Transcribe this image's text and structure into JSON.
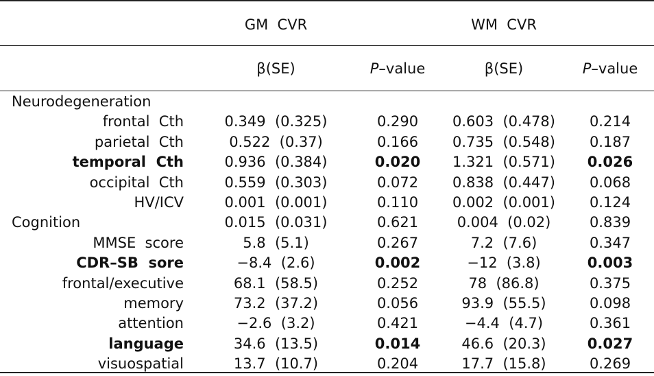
{
  "header": {
    "gm_group": "GM  CVR",
    "wm_group": "WM  CVR",
    "beta_se": "β(SE)",
    "p_italic": "P",
    "p_rest": "–value"
  },
  "rows": [
    {
      "section": "Neurodegeneration"
    },
    {
      "label": "frontal  Cth",
      "gm_b": "0.349  (0.325)",
      "gm_p": "0.290",
      "wm_b": "0.603  (0.478)",
      "wm_p": "0.214",
      "bold": false
    },
    {
      "label": "parietal  Cth",
      "gm_b": "0.522  (0.37)",
      "gm_p": "0.166",
      "wm_b": "0.735  (0.548)",
      "wm_p": "0.187",
      "bold": false
    },
    {
      "label": "temporal  Cth",
      "gm_b": "0.936  (0.384)",
      "gm_p": "0.020",
      "wm_b": "1.321  (0.571)",
      "wm_p": "0.026",
      "bold": true
    },
    {
      "label": "occipital  Cth",
      "gm_b": "0.559  (0.303)",
      "gm_p": "0.072",
      "wm_b": "0.838  (0.447)",
      "wm_p": "0.068",
      "bold": false
    },
    {
      "label": "HV/ICV",
      "gm_b": "0.001  (0.001)",
      "gm_p": "0.110",
      "wm_b": "0.002  (0.001)",
      "wm_p": "0.124",
      "bold": false
    },
    {
      "section": "Cognition",
      "gm_b": "0.015  (0.031)",
      "gm_p": "0.621",
      "wm_b": "0.004  (0.02)",
      "wm_p": "0.839",
      "bold": false
    },
    {
      "label": "MMSE  score",
      "gm_b": "5.8  (5.1)",
      "gm_p": "0.267",
      "wm_b": "7.2  (7.6)",
      "wm_p": "0.347",
      "bold": false
    },
    {
      "label": "CDR–SB  sore",
      "gm_b": "−8.4  (2.6)",
      "gm_p": "0.002",
      "wm_b": "−12  (3.8)",
      "wm_p": "0.003",
      "bold": true
    },
    {
      "label": "frontal/executive",
      "gm_b": "68.1  (58.5)",
      "gm_p": "0.252",
      "wm_b": "78  (86.8)",
      "wm_p": "0.375",
      "bold": false
    },
    {
      "label": "memory",
      "gm_b": "73.2  (37.2)",
      "gm_p": "0.056",
      "wm_b": "93.9  (55.5)",
      "wm_p": "0.098",
      "bold": false
    },
    {
      "label": "attention",
      "gm_b": "−2.6  (3.2)",
      "gm_p": "0.421",
      "wm_b": "−4.4  (4.7)",
      "wm_p": "0.361",
      "bold": false
    },
    {
      "label": "language",
      "gm_b": "34.6  (13.5)",
      "gm_p": "0.014",
      "wm_b": "46.6  (20.3)",
      "wm_p": "0.027",
      "bold": true
    },
    {
      "label": "visuospatial",
      "gm_b": "13.7  (10.7)",
      "gm_p": "0.204",
      "wm_b": "17.7  (15.8)",
      "wm_p": "0.269",
      "bold": false
    }
  ]
}
